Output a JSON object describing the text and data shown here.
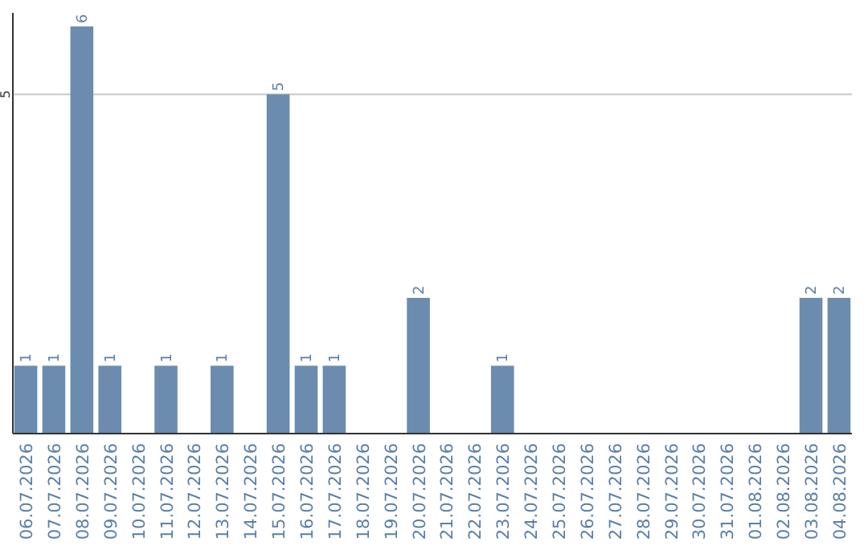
{
  "chart_data": {
    "type": "bar",
    "categories": [
      "06.07.2026",
      "07.07.2026",
      "08.07.2026",
      "09.07.2026",
      "10.07.2026",
      "11.07.2026",
      "12.07.2026",
      "13.07.2026",
      "14.07.2026",
      "15.07.2026",
      "16.07.2026",
      "17.07.2026",
      "18.07.2026",
      "19.07.2026",
      "20.07.2026",
      "21.07.2026",
      "22.07.2026",
      "23.07.2026",
      "24.07.2026",
      "25.07.2026",
      "26.07.2026",
      "27.07.2026",
      "28.07.2026",
      "29.07.2026",
      "30.07.2026",
      "31.07.2026",
      "01.08.2026",
      "02.08.2026",
      "03.08.2026",
      "04.08.2026"
    ],
    "values": [
      1,
      1,
      6,
      1,
      null,
      1,
      null,
      1,
      null,
      5,
      1,
      1,
      null,
      null,
      2,
      null,
      null,
      1,
      null,
      null,
      null,
      null,
      null,
      null,
      null,
      null,
      null,
      null,
      2,
      2
    ],
    "color": "#6b8cae",
    "ylim": [
      0,
      6.2
    ],
    "yticks": [
      5
    ],
    "grid": "y",
    "data_labels": true
  }
}
